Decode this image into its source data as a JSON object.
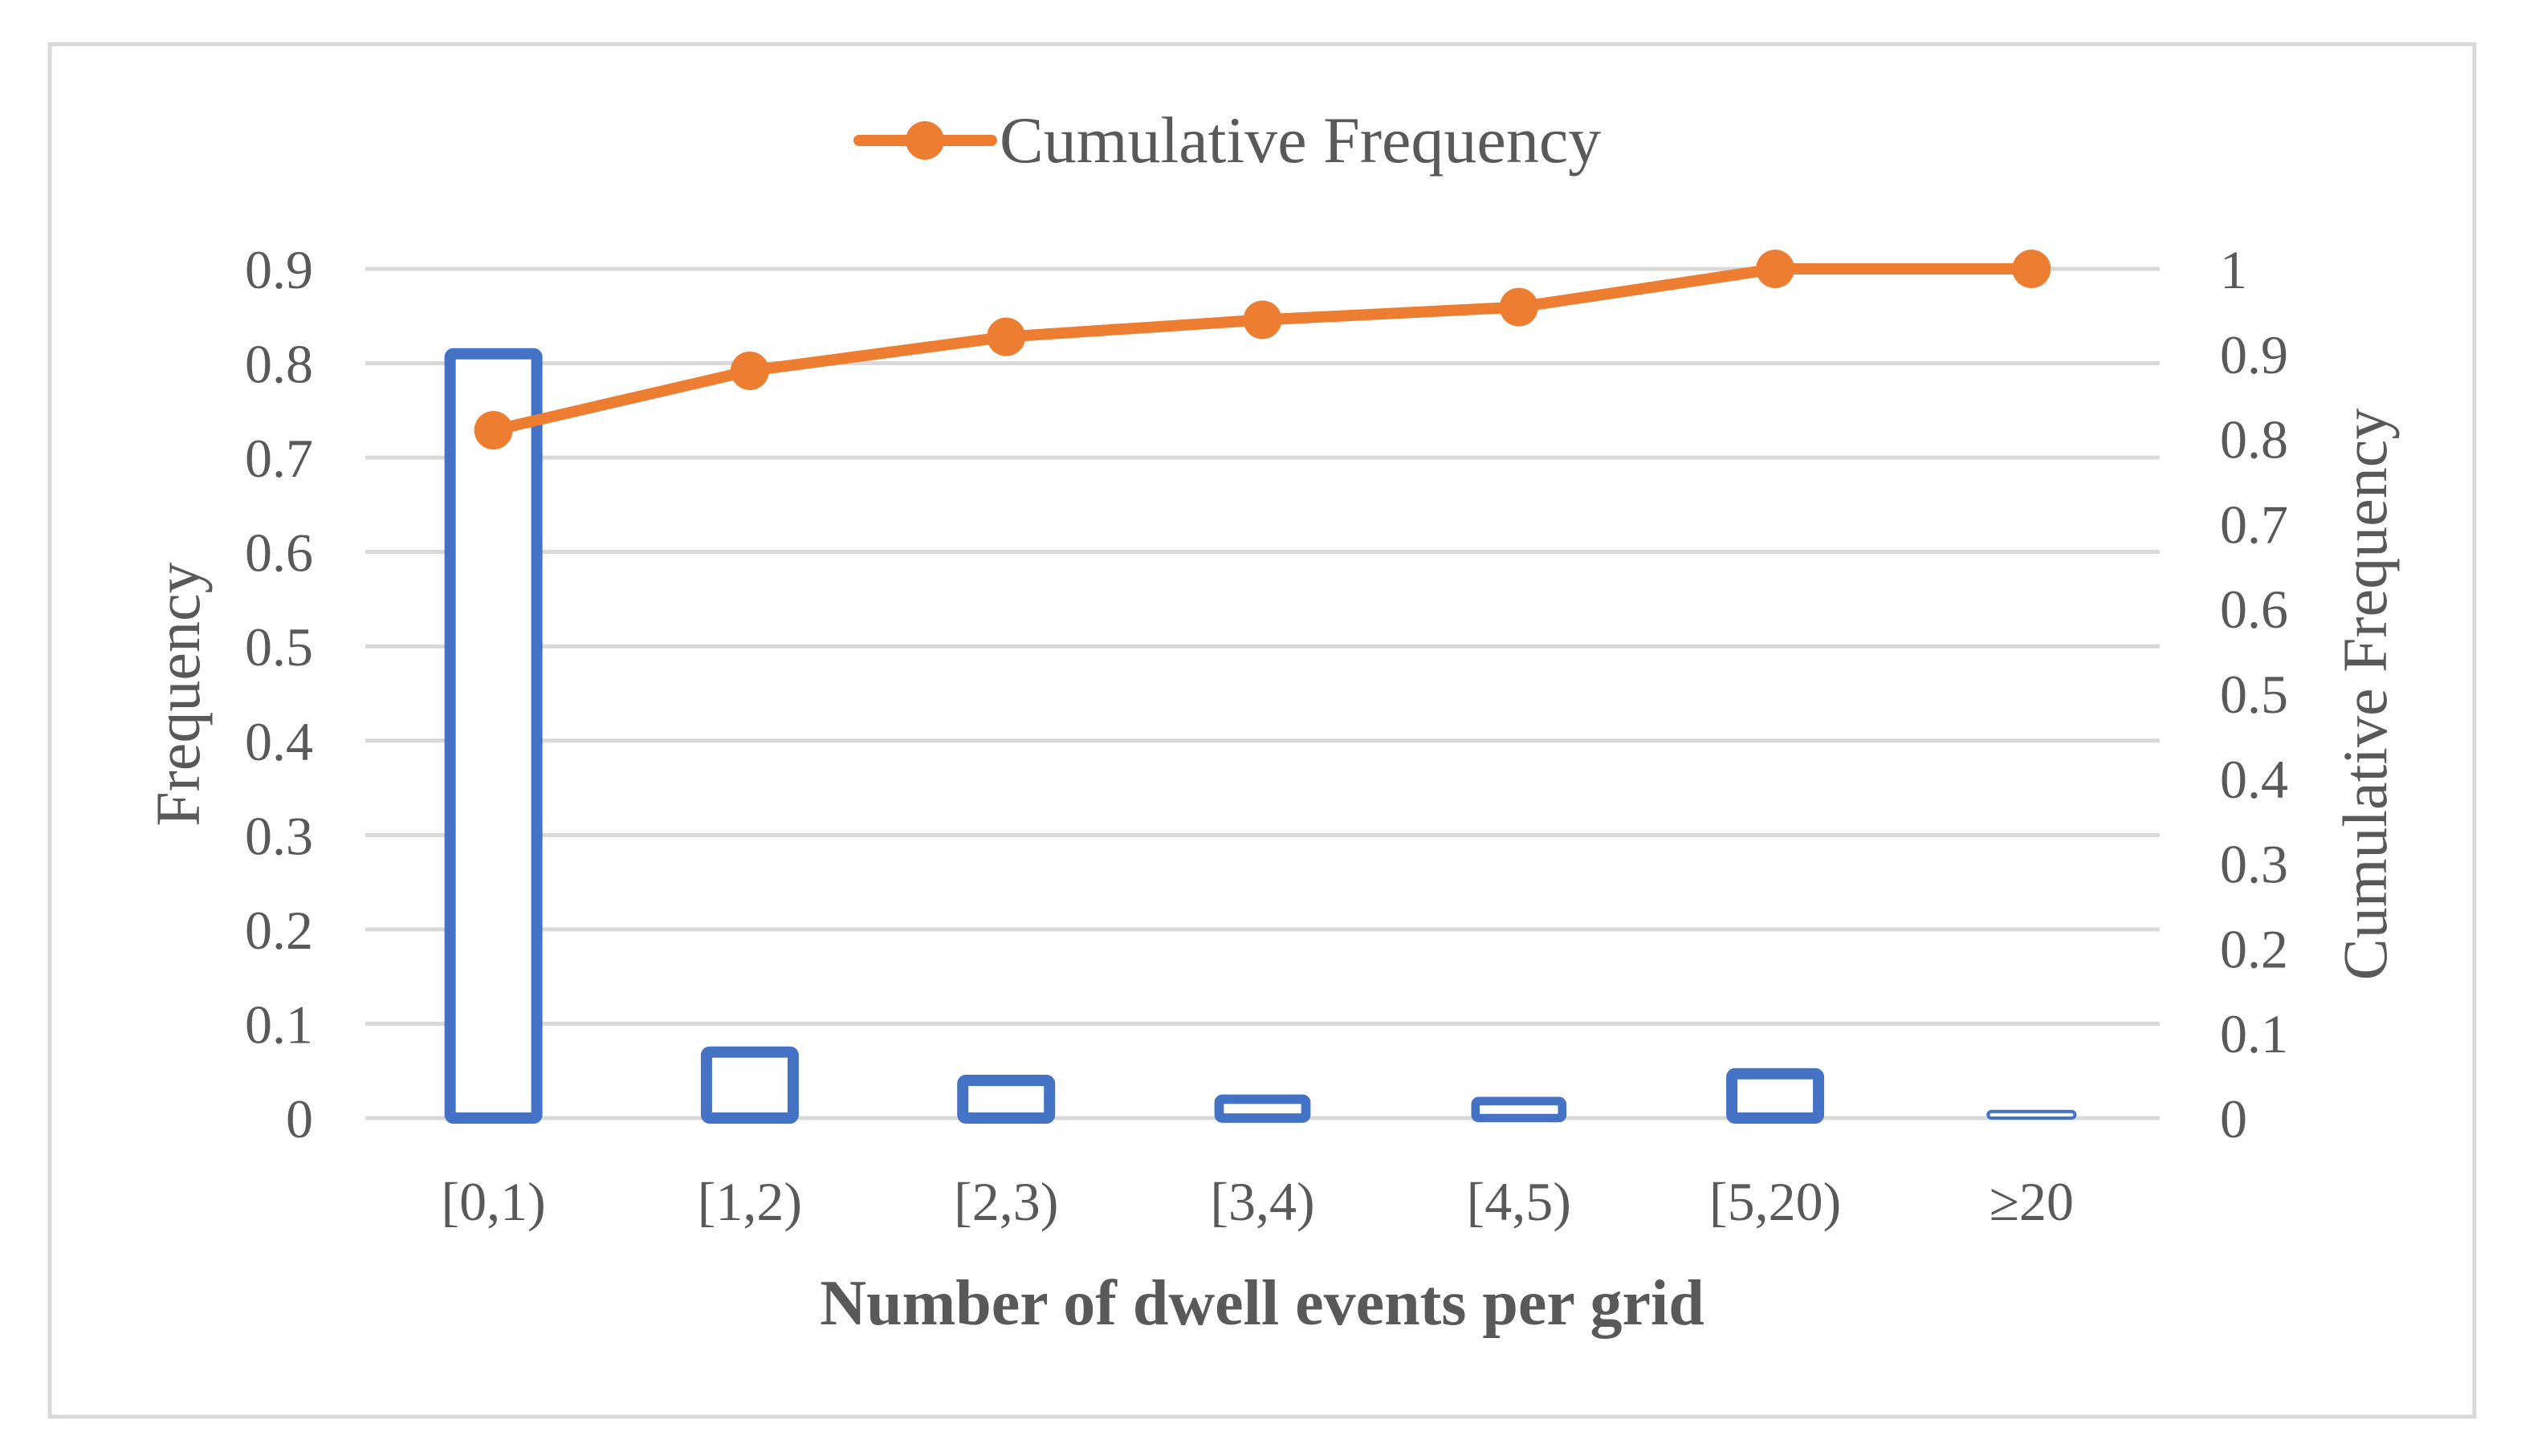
{
  "chart_data": {
    "type": "bar+line",
    "categories": [
      "[0,1)",
      "[1,2)",
      "[2,3)",
      "[3,4)",
      "[4,5)",
      "[5,20)",
      "≥20"
    ],
    "series": [
      {
        "name": "Frequency",
        "type": "bar",
        "axis": "left",
        "values": [
          0.81,
          0.07,
          0.04,
          0.02,
          0.018,
          0.047,
          0.007
        ]
      },
      {
        "name": "Cumulative Frequency",
        "type": "line",
        "axis": "right",
        "values": [
          0.81,
          0.88,
          0.92,
          0.94,
          0.955,
          1.0,
          1.0
        ]
      }
    ],
    "xlabel": "Number of dwell events per grid",
    "ylabel": "Frequency",
    "y2label": "Cumulative Frequency",
    "ylim": [
      0,
      0.9
    ],
    "y2lim": [
      0,
      1
    ],
    "yticks": [
      "0",
      "0.1",
      "0.2",
      "0.3",
      "0.4",
      "0.5",
      "0.6",
      "0.7",
      "0.8",
      "0.9"
    ],
    "y2ticks": [
      "0",
      "0.1",
      "0.2",
      "0.3",
      "0.4",
      "0.5",
      "0.6",
      "0.7",
      "0.8",
      "0.9",
      "1"
    ],
    "legend": [
      "Cumulative Frequency"
    ],
    "legend_position": "top-center",
    "grid": true,
    "colors": {
      "bar": "#4472C4",
      "line": "#ED7D31",
      "grid": "#D9D9D9",
      "text": "#595959",
      "frame": "#D9D9D9"
    }
  }
}
